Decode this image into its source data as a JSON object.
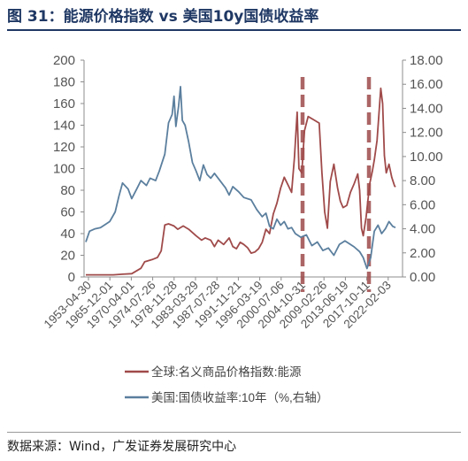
{
  "header": {
    "title": "图 31：能源价格指数  vs  美国10y国债收益率"
  },
  "footer": {
    "source": "数据来源：Wind，广发证券发展研究中心"
  },
  "chart_data": {
    "type": "line",
    "x_tick_labels": [
      "1953-04-30",
      "1965-12-01",
      "1970-04-01",
      "1974-07-26",
      "1978-11-28",
      "1983-03-29",
      "1987-07-28",
      "1991-11-21",
      "1996-03-19",
      "2000-07-06",
      "2004-10-31",
      "2009-02-26",
      "2013-06-19",
      "2017-10-11",
      "2022-02-03"
    ],
    "y_left": {
      "min": 0,
      "max": 200,
      "ticks": [
        0,
        20,
        40,
        60,
        80,
        100,
        120,
        140,
        160,
        180,
        200
      ]
    },
    "y_right": {
      "min": 0,
      "max": 18,
      "ticks": [
        "0.00",
        "2.00",
        "4.00",
        "6.00",
        "8.00",
        "10.00",
        "12.00",
        "14.00",
        "16.00",
        "18.00"
      ]
    },
    "vertical_markers": [
      {
        "at_tick_index": 10,
        "color": "#9e4b4b",
        "style": "dashed"
      },
      {
        "at_tick_index": 13.1,
        "color": "#9e4b4b",
        "style": "dashed"
      }
    ],
    "series": [
      {
        "name": "全球:名义商品价格指数:能源",
        "axis": "left",
        "color": "#a04a4a",
        "points": [
          [
            0,
            2
          ],
          [
            0.5,
            2
          ],
          [
            1,
            2
          ],
          [
            1.5,
            2
          ],
          [
            2,
            2.5
          ],
          [
            2.5,
            3
          ],
          [
            3,
            8
          ],
          [
            3.2,
            14
          ],
          [
            3.6,
            16
          ],
          [
            3.9,
            18
          ],
          [
            4.1,
            24
          ],
          [
            4.3,
            48
          ],
          [
            4.5,
            49
          ],
          [
            4.8,
            47
          ],
          [
            5,
            44
          ],
          [
            5.3,
            47
          ],
          [
            5.6,
            44
          ],
          [
            6,
            38
          ],
          [
            6.3,
            34
          ],
          [
            6.5,
            36
          ],
          [
            6.8,
            34
          ],
          [
            7,
            28
          ],
          [
            7.2,
            34
          ],
          [
            7.5,
            30
          ],
          [
            7.8,
            36
          ],
          [
            8,
            28
          ],
          [
            8.2,
            26
          ],
          [
            8.4,
            32
          ],
          [
            8.6,
            30
          ],
          [
            8.8,
            27
          ],
          [
            9,
            22
          ],
          [
            9.2,
            23
          ],
          [
            9.4,
            26
          ],
          [
            9.6,
            32
          ],
          [
            9.8,
            44
          ],
          [
            10,
            40
          ],
          [
            10.2,
            58
          ],
          [
            10.4,
            68
          ],
          [
            10.6,
            82
          ],
          [
            10.8,
            92
          ],
          [
            11,
            85
          ],
          [
            11.2,
            78
          ],
          [
            11.35,
            110
          ],
          [
            11.5,
            152
          ],
          [
            11.6,
            100
          ],
          [
            11.75,
            96
          ],
          [
            11.9,
            135
          ],
          [
            12.1,
            148
          ],
          [
            12.4,
            145
          ],
          [
            12.7,
            142
          ],
          [
            12.85,
            96
          ],
          [
            13,
            60
          ],
          [
            13.15,
            45
          ],
          [
            13.3,
            88
          ],
          [
            13.5,
            104
          ],
          [
            13.7,
            82
          ],
          [
            13.85,
            70
          ],
          [
            14,
            64
          ],
          [
            14.2,
            66
          ],
          [
            14.4,
            78
          ],
          [
            14.6,
            86
          ],
          [
            14.8,
            95
          ],
          [
            14.9,
            80
          ],
          [
            15,
            45
          ],
          [
            15.1,
            38
          ],
          [
            15.25,
            55
          ],
          [
            15.45,
            86
          ],
          [
            15.6,
            98
          ],
          [
            15.7,
            108
          ],
          [
            15.85,
            126
          ],
          [
            15.95,
            150
          ],
          [
            16.05,
            174
          ],
          [
            16.15,
            160
          ],
          [
            16.25,
            112
          ],
          [
            16.35,
            96
          ],
          [
            16.5,
            104
          ],
          [
            16.65,
            92
          ],
          [
            16.8,
            84
          ],
          [
            16.85,
            83
          ]
        ]
      },
      {
        "name": "美国:国债收益率:10年（%,右轴）",
        "axis": "right",
        "color": "#5b7f9e",
        "points": [
          [
            0,
            2.9
          ],
          [
            0.2,
            3.8
          ],
          [
            0.5,
            4.0
          ],
          [
            0.8,
            4.1
          ],
          [
            1,
            4.3
          ],
          [
            1.3,
            4.6
          ],
          [
            1.6,
            5.4
          ],
          [
            1.8,
            6.7
          ],
          [
            2,
            7.8
          ],
          [
            2.3,
            7.3
          ],
          [
            2.5,
            6.5
          ],
          [
            2.8,
            7.4
          ],
          [
            3,
            8.0
          ],
          [
            3.3,
            7.6
          ],
          [
            3.5,
            8.2
          ],
          [
            3.8,
            8.0
          ],
          [
            4,
            8.8
          ],
          [
            4.3,
            10.2
          ],
          [
            4.5,
            12.8
          ],
          [
            4.7,
            13.5
          ],
          [
            4.8,
            15.0
          ],
          [
            4.9,
            12.5
          ],
          [
            5.05,
            14.2
          ],
          [
            5.15,
            15.8
          ],
          [
            5.25,
            13.0
          ],
          [
            5.4,
            12.6
          ],
          [
            5.6,
            11.2
          ],
          [
            5.8,
            9.5
          ],
          [
            6,
            8.8
          ],
          [
            6.2,
            8.0
          ],
          [
            6.4,
            9.3
          ],
          [
            6.6,
            8.5
          ],
          [
            6.8,
            8.2
          ],
          [
            7,
            8.6
          ],
          [
            7.3,
            8.0
          ],
          [
            7.6,
            7.4
          ],
          [
            7.8,
            6.8
          ],
          [
            8,
            7.5
          ],
          [
            8.3,
            7.1
          ],
          [
            8.6,
            6.6
          ],
          [
            9,
            6.4
          ],
          [
            9.3,
            5.6
          ],
          [
            9.6,
            5.0
          ],
          [
            9.8,
            5.3
          ],
          [
            10,
            4.2
          ],
          [
            10.2,
            4.0
          ],
          [
            10.4,
            4.8
          ],
          [
            10.6,
            4.3
          ],
          [
            10.8,
            4.6
          ],
          [
            11,
            4.0
          ],
          [
            11.2,
            4.1
          ],
          [
            11.4,
            3.6
          ],
          [
            11.7,
            3.3
          ],
          [
            12,
            3.5
          ],
          [
            12.3,
            2.6
          ],
          [
            12.6,
            2.9
          ],
          [
            12.9,
            2.2
          ],
          [
            13.2,
            2.4
          ],
          [
            13.5,
            1.8
          ],
          [
            13.8,
            2.7
          ],
          [
            14.1,
            3.0
          ],
          [
            14.3,
            2.8
          ],
          [
            14.6,
            2.5
          ],
          [
            14.9,
            2.1
          ],
          [
            15.1,
            1.6
          ],
          [
            15.3,
            0.7
          ],
          [
            15.5,
            1.6
          ],
          [
            15.7,
            3.8
          ],
          [
            15.9,
            4.3
          ],
          [
            16.1,
            3.6
          ],
          [
            16.3,
            4.0
          ],
          [
            16.5,
            4.6
          ],
          [
            16.7,
            4.2
          ],
          [
            16.85,
            4.1
          ]
        ]
      }
    ],
    "legend": [
      {
        "label": "全球:名义商品价格指数:能源",
        "color": "#a04a4a"
      },
      {
        "label": "美国:国债收益率:10年（%,右轴）",
        "color": "#5b7f9e"
      }
    ]
  }
}
